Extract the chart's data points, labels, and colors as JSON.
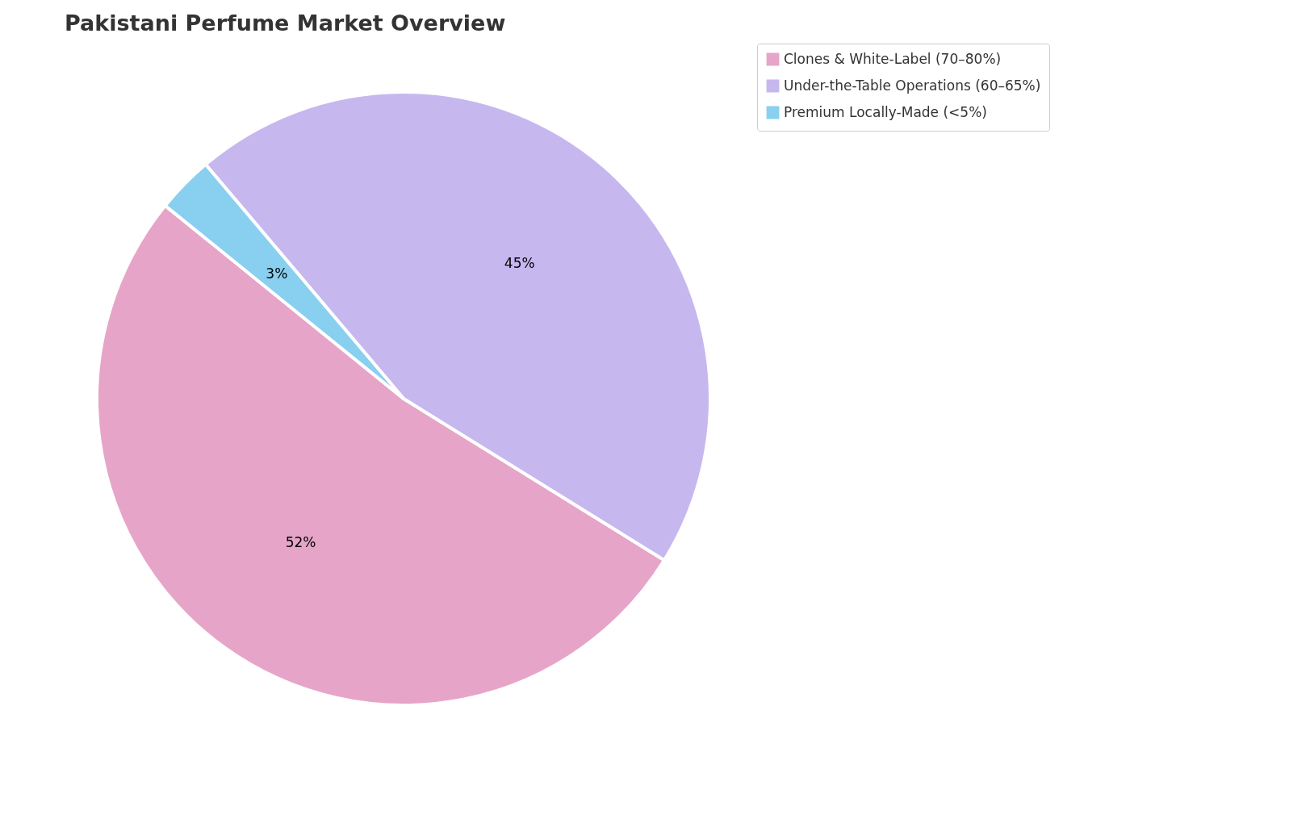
{
  "chart_data": {
    "type": "pie",
    "title": "Pakistani Perfume Market Overview",
    "categories": [
      "Clones & White-Label (70–80%)",
      "Under-the-Table Operations (60–65%)",
      "Premium Locally-Made (<5%)"
    ],
    "values": [
      52,
      45,
      3
    ],
    "colors": [
      "#e6a5c8",
      "#c7b7ef",
      "#89cfef"
    ],
    "value_labels": [
      "52%",
      "45%",
      "3%"
    ],
    "legend": "right"
  }
}
